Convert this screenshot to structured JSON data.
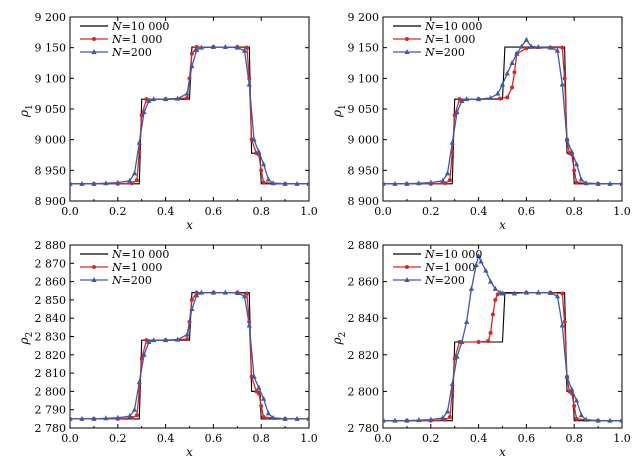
{
  "chart_data": [
    {
      "type": "line",
      "panel": "top-left",
      "xlabel": "x",
      "ylabel": "ρ1",
      "xlim": [
        0,
        1
      ],
      "ylim": [
        8900,
        9200
      ],
      "xticks": [
        0.0,
        0.2,
        0.4,
        0.6,
        0.8,
        1.0
      ],
      "xtick_labels": [
        "0.0",
        "0.2",
        "0.4",
        "0.6",
        "0.8",
        "1.0"
      ],
      "yticks": [
        8900,
        8950,
        9000,
        9050,
        9100,
        9150,
        9200
      ],
      "ytick_labels": [
        "8 900",
        "8 950",
        "9 000",
        "9 050",
        "9 100",
        "9 150",
        "9 200"
      ],
      "legend": "top-left",
      "grid": false,
      "series": [
        {
          "name": "N=10 000",
          "color": "#000000",
          "marker": "none",
          "x": [
            0.0,
            0.29,
            0.3,
            0.5,
            0.51,
            0.75,
            0.76,
            0.795,
            0.8,
            1.0
          ],
          "y": [
            8928,
            8928,
            9066,
            9066,
            9151,
            9151,
            8978,
            8978,
            8928,
            8928
          ]
        },
        {
          "name": "N=1 000",
          "color": "#d62728",
          "marker": "circle",
          "x": [
            0.0,
            0.1,
            0.2,
            0.26,
            0.28,
            0.29,
            0.3,
            0.32,
            0.4,
            0.49,
            0.5,
            0.51,
            0.53,
            0.6,
            0.7,
            0.74,
            0.75,
            0.76,
            0.78,
            0.79,
            0.8,
            0.81,
            0.9,
            1.0
          ],
          "y": [
            8928,
            8928,
            8928,
            8929,
            8934,
            8980,
            9040,
            9066,
            9066,
            9068,
            9100,
            9140,
            9151,
            9151,
            9151,
            9150,
            9100,
            9000,
            8978,
            8976,
            8950,
            8930,
            8928,
            8928
          ]
        },
        {
          "name": "N=200",
          "color": "#3b5ba9",
          "marker": "triangle",
          "x": [
            0.0,
            0.05,
            0.1,
            0.15,
            0.2,
            0.25,
            0.27,
            0.29,
            0.31,
            0.33,
            0.35,
            0.4,
            0.45,
            0.49,
            0.51,
            0.53,
            0.55,
            0.6,
            0.65,
            0.7,
            0.73,
            0.75,
            0.77,
            0.79,
            0.81,
            0.83,
            0.85,
            0.9,
            0.95,
            1.0
          ],
          "y": [
            8928,
            8928,
            8928,
            8929,
            8930,
            8933,
            8945,
            8995,
            9045,
            9063,
            9066,
            9066,
            9067,
            9075,
            9120,
            9146,
            9150,
            9151,
            9151,
            9150,
            9145,
            9090,
            9000,
            8980,
            8960,
            8935,
            8929,
            8928,
            8928,
            8928
          ]
        }
      ]
    },
    {
      "type": "line",
      "panel": "top-right",
      "xlabel": "x",
      "ylabel": "ρ1",
      "xlim": [
        0,
        1
      ],
      "ylim": [
        8900,
        9200
      ],
      "xticks": [
        0.0,
        0.2,
        0.4,
        0.6,
        0.8,
        1.0
      ],
      "xtick_labels": [
        "0.0",
        "0.2",
        "0.4",
        "0.6",
        "0.8",
        "1.0"
      ],
      "yticks": [
        8900,
        8950,
        9000,
        9050,
        9100,
        9150,
        9200
      ],
      "ytick_labels": [
        "8 900",
        "8 950",
        "9 000",
        "9 050",
        "9 100",
        "9 150",
        "9 200"
      ],
      "legend": "top-left",
      "grid": false,
      "series": [
        {
          "name": "N=10 000",
          "color": "#000000",
          "marker": "none",
          "x": [
            0.0,
            0.29,
            0.3,
            0.5,
            0.51,
            0.76,
            0.77,
            0.795,
            0.8,
            1.0
          ],
          "y": [
            8928,
            8928,
            9066,
            9066,
            9151,
            9151,
            8978,
            8978,
            8928,
            8928
          ]
        },
        {
          "name": "N=1 000",
          "color": "#d62728",
          "marker": "circle",
          "x": [
            0.0,
            0.1,
            0.2,
            0.26,
            0.28,
            0.29,
            0.3,
            0.32,
            0.4,
            0.49,
            0.52,
            0.54,
            0.55,
            0.56,
            0.6,
            0.7,
            0.75,
            0.76,
            0.77,
            0.78,
            0.79,
            0.8,
            0.81,
            0.9,
            1.0
          ],
          "y": [
            8928,
            8928,
            8928,
            8929,
            8934,
            8980,
            9040,
            9066,
            9066,
            9067,
            9069,
            9085,
            9110,
            9140,
            9149,
            9150,
            9150,
            9100,
            9000,
            8978,
            8976,
            8950,
            8930,
            8928,
            8928
          ]
        },
        {
          "name": "N=200",
          "color": "#3b5ba9",
          "marker": "triangle",
          "x": [
            0.0,
            0.05,
            0.1,
            0.15,
            0.2,
            0.25,
            0.27,
            0.29,
            0.31,
            0.33,
            0.35,
            0.4,
            0.45,
            0.48,
            0.5,
            0.52,
            0.54,
            0.56,
            0.58,
            0.6,
            0.62,
            0.65,
            0.7,
            0.73,
            0.75,
            0.77,
            0.79,
            0.81,
            0.83,
            0.85,
            0.9,
            0.95,
            1.0
          ],
          "y": [
            8928,
            8928,
            8928,
            8929,
            8930,
            8933,
            8945,
            8995,
            9045,
            9063,
            9066,
            9066,
            9068,
            9075,
            9090,
            9108,
            9125,
            9140,
            9152,
            9163,
            9152,
            9151,
            9150,
            9145,
            9090,
            9000,
            8980,
            8960,
            8935,
            8929,
            8928,
            8928,
            8928
          ]
        }
      ]
    },
    {
      "type": "line",
      "panel": "bottom-left",
      "xlabel": "x",
      "ylabel": "ρ2",
      "xlim": [
        0,
        1
      ],
      "ylim": [
        2780,
        2880
      ],
      "xticks": [
        0.0,
        0.2,
        0.4,
        0.6,
        0.8,
        1.0
      ],
      "xtick_labels": [
        "0.0",
        "0.2",
        "0.4",
        "0.6",
        "0.8",
        "1.0"
      ],
      "yticks": [
        2780,
        2790,
        2800,
        2810,
        2820,
        2830,
        2840,
        2850,
        2860,
        2870,
        2880
      ],
      "ytick_labels": [
        "2 780",
        "2 790",
        "2 800",
        "2 810",
        "2 820",
        "2 830",
        "2 840",
        "2 850",
        "2 860",
        "2 870",
        "2 880"
      ],
      "legend": "top-left",
      "grid": false,
      "series": [
        {
          "name": "N=10 000",
          "color": "#000000",
          "marker": "none",
          "x": [
            0.0,
            0.29,
            0.3,
            0.5,
            0.51,
            0.75,
            0.76,
            0.795,
            0.8,
            1.0
          ],
          "y": [
            2785,
            2785,
            2828,
            2828,
            2854,
            2854,
            2800,
            2800,
            2785,
            2785
          ]
        },
        {
          "name": "N=1 000",
          "color": "#d62728",
          "marker": "circle",
          "x": [
            0.0,
            0.1,
            0.2,
            0.26,
            0.28,
            0.29,
            0.3,
            0.32,
            0.4,
            0.49,
            0.5,
            0.51,
            0.53,
            0.6,
            0.7,
            0.74,
            0.75,
            0.76,
            0.78,
            0.79,
            0.8,
            0.81,
            0.9,
            1.0
          ],
          "y": [
            2785,
            2785,
            2785,
            2785.5,
            2787,
            2800,
            2818,
            2828,
            2828,
            2828.5,
            2838,
            2850,
            2854,
            2854,
            2854,
            2853.5,
            2838,
            2808,
            2800,
            2799,
            2792,
            2786,
            2785,
            2785
          ]
        },
        {
          "name": "N=200",
          "color": "#3b5ba9",
          "marker": "triangle",
          "x": [
            0.0,
            0.05,
            0.1,
            0.15,
            0.2,
            0.25,
            0.27,
            0.29,
            0.31,
            0.33,
            0.35,
            0.4,
            0.45,
            0.49,
            0.51,
            0.53,
            0.55,
            0.6,
            0.65,
            0.7,
            0.73,
            0.75,
            0.77,
            0.79,
            0.81,
            0.83,
            0.85,
            0.9,
            0.95,
            1.0
          ],
          "y": [
            2785,
            2785,
            2785,
            2785.3,
            2785.6,
            2786.5,
            2790,
            2805,
            2820,
            2827,
            2828,
            2828,
            2828.3,
            2831,
            2845,
            2852.5,
            2854,
            2854,
            2854,
            2853.8,
            2852,
            2836,
            2808,
            2802,
            2796,
            2788,
            2785.5,
            2785,
            2785,
            2785
          ]
        }
      ]
    },
    {
      "type": "line",
      "panel": "bottom-right",
      "xlabel": "x",
      "ylabel": "ρ2",
      "xlim": [
        0,
        1
      ],
      "ylim": [
        2780,
        2880
      ],
      "xticks": [
        0.0,
        0.2,
        0.4,
        0.6,
        0.8,
        1.0
      ],
      "xtick_labels": [
        "0.0",
        "0.2",
        "0.4",
        "0.6",
        "0.8",
        "1.0"
      ],
      "yticks": [
        2780,
        2800,
        2820,
        2840,
        2860,
        2880
      ],
      "ytick_labels": [
        "2 780",
        "2 800",
        "2 820",
        "2 840",
        "2 860",
        "2 880"
      ],
      "legend": "top-left",
      "grid": false,
      "series": [
        {
          "name": "N=10 000",
          "color": "#000000",
          "marker": "none",
          "x": [
            0.0,
            0.29,
            0.3,
            0.5,
            0.51,
            0.76,
            0.77,
            0.795,
            0.8,
            1.0
          ],
          "y": [
            2784,
            2784,
            2827,
            2827,
            2854,
            2854,
            2800,
            2800,
            2784,
            2784
          ]
        },
        {
          "name": "N=1 000",
          "color": "#d62728",
          "marker": "circle",
          "x": [
            0.0,
            0.1,
            0.2,
            0.26,
            0.28,
            0.29,
            0.3,
            0.32,
            0.4,
            0.44,
            0.45,
            0.46,
            0.47,
            0.48,
            0.5,
            0.6,
            0.7,
            0.75,
            0.76,
            0.77,
            0.78,
            0.79,
            0.8,
            0.81,
            0.9,
            1.0
          ],
          "y": [
            2784,
            2784,
            2784,
            2784.5,
            2786,
            2800,
            2818,
            2827,
            2827,
            2827.5,
            2832,
            2842,
            2850,
            2853,
            2853.5,
            2854,
            2854,
            2853.5,
            2838,
            2808,
            2800,
            2799,
            2792,
            2785,
            2784,
            2784
          ]
        },
        {
          "name": "N=200",
          "color": "#3b5ba9",
          "marker": "triangle",
          "x": [
            0.0,
            0.05,
            0.1,
            0.15,
            0.2,
            0.25,
            0.27,
            0.29,
            0.31,
            0.33,
            0.35,
            0.37,
            0.39,
            0.4,
            0.41,
            0.43,
            0.45,
            0.47,
            0.49,
            0.5,
            0.55,
            0.6,
            0.65,
            0.7,
            0.73,
            0.75,
            0.77,
            0.79,
            0.81,
            0.83,
            0.85,
            0.9,
            0.95,
            1.0
          ],
          "y": [
            2784,
            2784,
            2784,
            2784.3,
            2784.6,
            2785.5,
            2789,
            2804,
            2819,
            2827,
            2838,
            2856,
            2869,
            2874,
            2871,
            2866,
            2860,
            2856,
            2854,
            2853.5,
            2853.5,
            2854,
            2854,
            2853.8,
            2852,
            2836,
            2808,
            2801,
            2795,
            2787,
            2784.5,
            2784,
            2784,
            2784
          ]
        }
      ]
    }
  ],
  "legend_labels": [
    {
      "var": "N",
      "rest": "=10 000"
    },
    {
      "var": "N",
      "rest": "=1 000"
    },
    {
      "var": "N",
      "rest": "=200"
    }
  ],
  "axis_text": {
    "x_symbol": "x",
    "y_symbol_top": "ρ",
    "y_sub_top": "1",
    "y_symbol_bottom": "ρ",
    "y_sub_bottom": "2"
  }
}
